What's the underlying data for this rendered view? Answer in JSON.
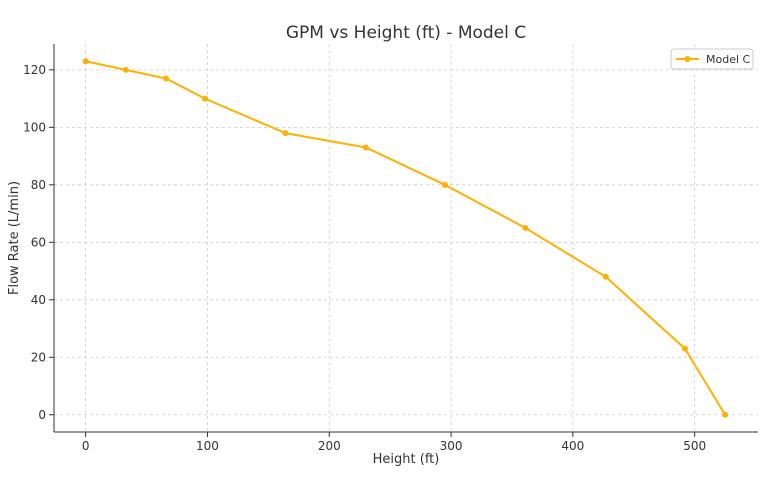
{
  "chart_data": {
    "type": "line",
    "title": "GPM vs Height (ft) - Model C",
    "xlabel": "Height (ft)",
    "ylabel": "Flow Rate (L/min)",
    "xlim": [
      -26,
      552
    ],
    "ylim": [
      -6,
      129
    ],
    "xticks": [
      0,
      100,
      200,
      300,
      400,
      500
    ],
    "yticks": [
      0,
      20,
      40,
      60,
      80,
      100,
      120
    ],
    "grid": true,
    "grid_style": "dashed",
    "legend_position": "top-right",
    "series": [
      {
        "name": "Model C",
        "color": "#FFB000",
        "marker": "circle",
        "x": [
          0,
          33,
          66,
          98,
          164,
          230,
          295,
          361,
          427,
          492,
          525
        ],
        "y": [
          123,
          120,
          117,
          110,
          98,
          93,
          80,
          65,
          48,
          23,
          0
        ]
      }
    ]
  }
}
